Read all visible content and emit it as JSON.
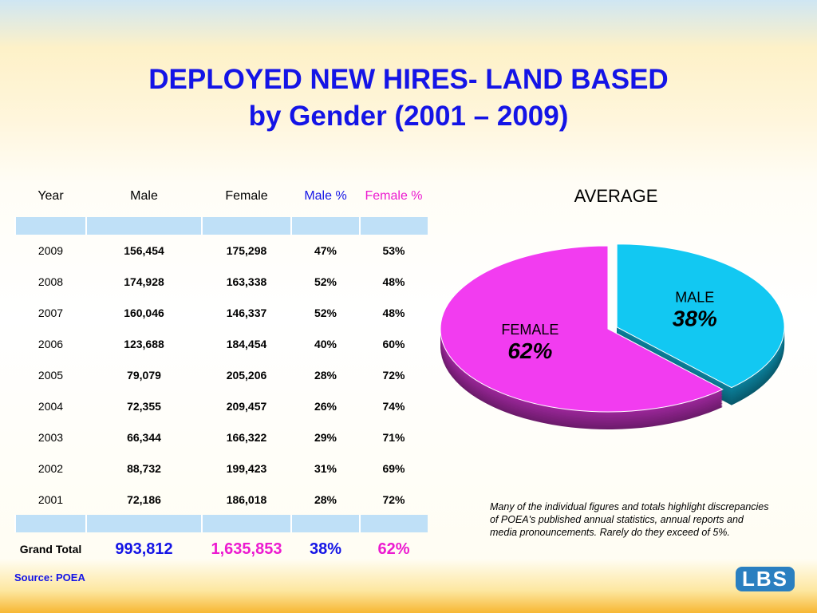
{
  "title": [
    "DEPLOYED NEW HIRES- LAND BASED",
    "by Gender (2001 – 2009)"
  ],
  "table": {
    "header": [
      "Year",
      "Male",
      "Female",
      "Male %",
      "Female %"
    ],
    "rows": [
      [
        "2009",
        "156,454",
        "175,298",
        "47%",
        "53%"
      ],
      [
        "2008",
        "174,928",
        "163,338",
        "52%",
        "48%"
      ],
      [
        "2007",
        "160,046",
        "146,337",
        "52%",
        "48%"
      ],
      [
        "2006",
        "123,688",
        "184,454",
        "40%",
        "60%"
      ],
      [
        "2005",
        "79,079",
        "205,206",
        "28%",
        "72%"
      ],
      [
        "2004",
        "72,355",
        "209,457",
        "26%",
        "74%"
      ],
      [
        "2003",
        "66,344",
        "166,322",
        "29%",
        "71%"
      ],
      [
        "2002",
        "88,732",
        "199,423",
        "31%",
        "69%"
      ],
      [
        "2001",
        "72,186",
        "186,018",
        "28%",
        "72%"
      ]
    ],
    "total": [
      "Grand Total",
      "993,812",
      "1,635,853",
      "38%",
      "62%"
    ]
  },
  "source": "Source: POEA",
  "note": "Many of the individual figures and totals highlight discrepancies of POEA's published annual statistics, annual reports and media pronouncements. Rarely do they exceed of 5%.",
  "logo": "LBS",
  "chart_data": {
    "type": "pie",
    "title": "AVERAGE",
    "categories": [
      "MALE",
      "FEMALE"
    ],
    "values": [
      38,
      62
    ],
    "value_labels": [
      "38%",
      "62%"
    ],
    "colors": [
      "#12c8f2",
      "#f23cf0"
    ]
  }
}
